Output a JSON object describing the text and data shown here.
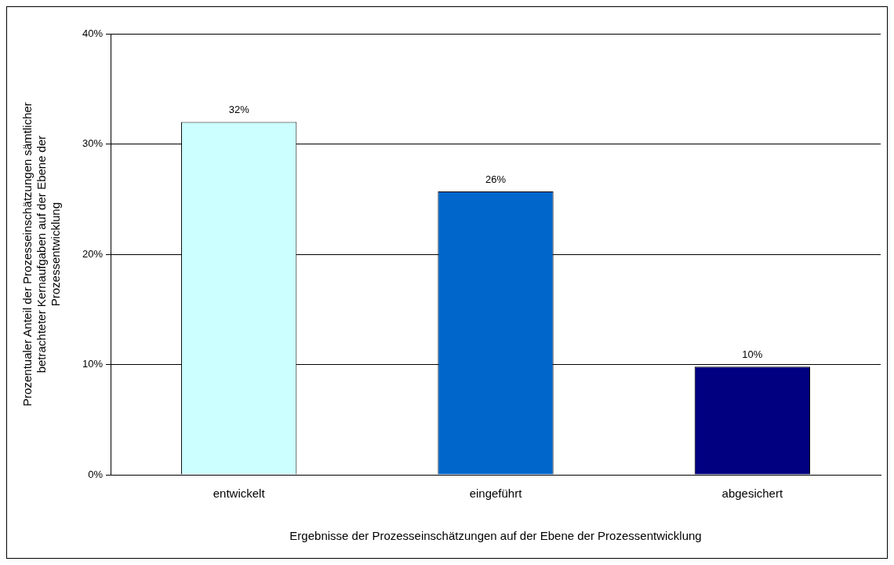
{
  "chart_data": {
    "type": "bar",
    "xlabel": "Ergebnisse der Prozesseinschätzungen auf der Ebene der Prozessentwicklung",
    "ylabel": "Prozentualer Anteil der Prozesseinschätzungen sämtlicher betrachteter Kernaufgaben auf der Ebene der Prozessentwicklung",
    "categories": [
      "entwickelt",
      "eingeführt",
      "abgesichert"
    ],
    "values": [
      32,
      25.7,
      9.8
    ],
    "value_labels": [
      "32%",
      "26%",
      "10%"
    ],
    "colors": [
      "#ccffff",
      "#0066cc",
      "#000080"
    ],
    "ylim": [
      0,
      40
    ],
    "yticks": [
      {
        "value": 0,
        "label": "0%"
      },
      {
        "value": 10,
        "label": "10%"
      },
      {
        "value": 20,
        "label": "20%"
      },
      {
        "value": 30,
        "label": "30%"
      },
      {
        "value": 40,
        "label": "40%"
      }
    ],
    "grid": "y",
    "legend": false
  }
}
